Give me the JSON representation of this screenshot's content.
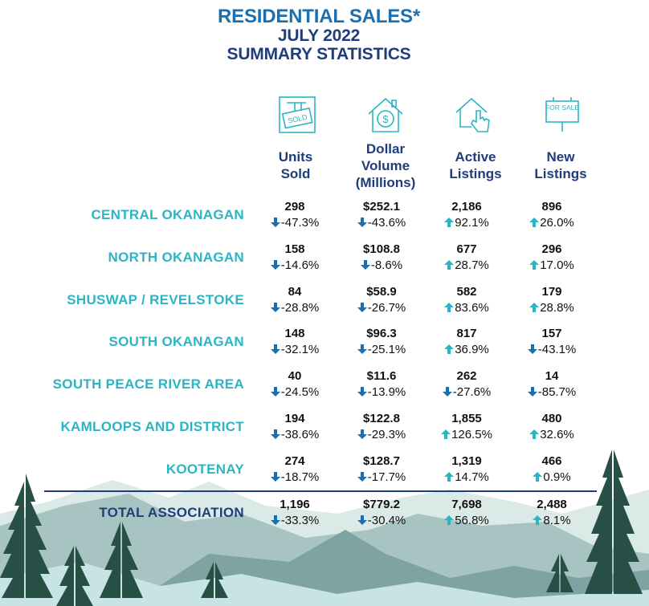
{
  "title": {
    "line1": "RESIDENTIAL SALES*",
    "line2": "JULY 2022",
    "line3": "SUMMARY STATISTICS"
  },
  "icons": [
    {
      "name": "sold-sign-icon",
      "label": "SOLD"
    },
    {
      "name": "house-dollar-icon"
    },
    {
      "name": "house-pointer-icon"
    },
    {
      "name": "for-sale-sign-icon",
      "label": "FOR SALE"
    }
  ],
  "columns": [
    {
      "line1": "Units",
      "line2": "Sold",
      "line3": ""
    },
    {
      "line1": "Dollar",
      "line2": "Volume",
      "line3": "(Millions)"
    },
    {
      "line1": "Active",
      "line2": "Listings",
      "line3": ""
    },
    {
      "line1": "New",
      "line2": "Listings",
      "line3": ""
    }
  ],
  "colors": {
    "title_blue": "#1a6fb0",
    "navy": "#1f3d7a",
    "teal": "#2bb5c4",
    "arrow_up": "#2bb5c4",
    "arrow_down": "#1a6fb0"
  },
  "rows": [
    {
      "region": "CENTRAL OKANAGAN",
      "total": false,
      "cells": [
        {
          "value": "298",
          "change": "-47.3%",
          "dir": "down"
        },
        {
          "value": "$252.1",
          "change": "-43.6%",
          "dir": "down"
        },
        {
          "value": "2,186",
          "change": "92.1%",
          "dir": "up"
        },
        {
          "value": "896",
          "change": "26.0%",
          "dir": "up"
        }
      ]
    },
    {
      "region": "NORTH OKANAGAN",
      "total": false,
      "cells": [
        {
          "value": "158",
          "change": "-14.6%",
          "dir": "down"
        },
        {
          "value": "$108.8",
          "change": "-8.6%",
          "dir": "down"
        },
        {
          "value": "677",
          "change": "28.7%",
          "dir": "up"
        },
        {
          "value": "296",
          "change": "17.0%",
          "dir": "up"
        }
      ]
    },
    {
      "region": "SHUSWAP / REVELSTOKE",
      "total": false,
      "cells": [
        {
          "value": "84",
          "change": "-28.8%",
          "dir": "down"
        },
        {
          "value": "$58.9",
          "change": "-26.7%",
          "dir": "down"
        },
        {
          "value": "582",
          "change": "83.6%",
          "dir": "up"
        },
        {
          "value": "179",
          "change": "28.8%",
          "dir": "up"
        }
      ]
    },
    {
      "region": "SOUTH OKANAGAN",
      "total": false,
      "cells": [
        {
          "value": "148",
          "change": "-32.1%",
          "dir": "down"
        },
        {
          "value": "$96.3",
          "change": "-25.1%",
          "dir": "down"
        },
        {
          "value": "817",
          "change": "36.9%",
          "dir": "up"
        },
        {
          "value": "157",
          "change": "-43.1%",
          "dir": "down"
        }
      ]
    },
    {
      "region": "SOUTH PEACE RIVER AREA",
      "total": false,
      "cells": [
        {
          "value": "40",
          "change": "-24.5%",
          "dir": "down"
        },
        {
          "value": "$11.6",
          "change": "-13.9%",
          "dir": "down"
        },
        {
          "value": "262",
          "change": "-27.6%",
          "dir": "down"
        },
        {
          "value": "14",
          "change": "-85.7%",
          "dir": "down"
        }
      ]
    },
    {
      "region": "KAMLOOPS AND DISTRICT",
      "total": false,
      "cells": [
        {
          "value": "194",
          "change": "-38.6%",
          "dir": "down"
        },
        {
          "value": "$122.8",
          "change": "-29.3%",
          "dir": "down"
        },
        {
          "value": "1,855",
          "change": "126.5%",
          "dir": "up"
        },
        {
          "value": "480",
          "change": "32.6%",
          "dir": "up"
        }
      ]
    },
    {
      "region": "KOOTENAY",
      "total": false,
      "cells": [
        {
          "value": "274",
          "change": "-18.7%",
          "dir": "down"
        },
        {
          "value": "$128.7",
          "change": "-17.7%",
          "dir": "down"
        },
        {
          "value": "1,319",
          "change": "14.7%",
          "dir": "up"
        },
        {
          "value": "466",
          "change": "0.9%",
          "dir": "up"
        }
      ]
    },
    {
      "region": "TOTAL ASSOCIATION",
      "total": true,
      "cells": [
        {
          "value": "1,196",
          "change": "-33.3%",
          "dir": "down"
        },
        {
          "value": "$779.2",
          "change": "-30.4%",
          "dir": "down"
        },
        {
          "value": "7,698",
          "change": "56.8%",
          "dir": "up"
        },
        {
          "value": "2,488",
          "change": "8.1%",
          "dir": "up"
        }
      ]
    }
  ]
}
